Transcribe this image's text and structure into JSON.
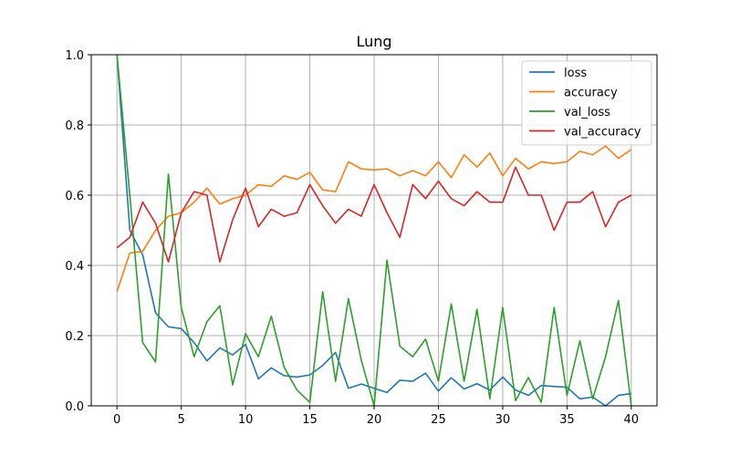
{
  "chart_data": {
    "type": "line",
    "title": "Lung",
    "xlabel": "",
    "ylabel": "",
    "xlim": [
      -2,
      42
    ],
    "ylim": [
      0,
      1.0
    ],
    "x_ticks": [
      0,
      5,
      10,
      15,
      20,
      25,
      30,
      35,
      40
    ],
    "y_ticks": [
      0.0,
      0.2,
      0.4,
      0.6,
      0.8,
      1.0
    ],
    "x_tick_labels": [
      "0",
      "5",
      "10",
      "15",
      "20",
      "25",
      "30",
      "35",
      "40"
    ],
    "y_tick_labels": [
      "0.0",
      "0.2",
      "0.4",
      "0.6",
      "0.8",
      "1.0"
    ],
    "grid": true,
    "legend_position": "top-right",
    "x": [
      0,
      1,
      2,
      3,
      4,
      5,
      6,
      7,
      8,
      9,
      10,
      11,
      12,
      13,
      14,
      15,
      16,
      17,
      18,
      19,
      20,
      21,
      22,
      23,
      24,
      25,
      26,
      27,
      28,
      29,
      30,
      31,
      32,
      33,
      34,
      35,
      36,
      37,
      38,
      39,
      40
    ],
    "series": [
      {
        "name": "loss",
        "color": "#1f77b4",
        "values": [
          1.0,
          0.5,
          0.43,
          0.265,
          0.225,
          0.22,
          0.18,
          0.128,
          0.165,
          0.145,
          0.175,
          0.077,
          0.108,
          0.086,
          0.082,
          0.088,
          0.115,
          0.152,
          0.05,
          0.062,
          0.05,
          0.038,
          0.073,
          0.07,
          0.093,
          0.042,
          0.08,
          0.048,
          0.063,
          0.045,
          0.082,
          0.045,
          0.03,
          0.058,
          0.055,
          0.053,
          0.02,
          0.025,
          0.0,
          0.03,
          0.035
        ]
      },
      {
        "name": "accuracy",
        "color": "#ff7f0e",
        "values": [
          0.325,
          0.435,
          0.44,
          0.5,
          0.54,
          0.55,
          0.58,
          0.62,
          0.575,
          0.59,
          0.6,
          0.63,
          0.625,
          0.655,
          0.645,
          0.665,
          0.615,
          0.61,
          0.695,
          0.675,
          0.672,
          0.675,
          0.655,
          0.67,
          0.655,
          0.695,
          0.65,
          0.715,
          0.68,
          0.72,
          0.655,
          0.705,
          0.675,
          0.695,
          0.69,
          0.695,
          0.725,
          0.715,
          0.74,
          0.705,
          0.73
        ]
      },
      {
        "name": "val_loss",
        "color": "#2ca02c",
        "values": [
          1.0,
          0.6,
          0.18,
          0.125,
          0.66,
          0.28,
          0.14,
          0.24,
          0.285,
          0.06,
          0.205,
          0.14,
          0.255,
          0.11,
          0.045,
          0.01,
          0.325,
          0.07,
          0.305,
          0.13,
          0.0,
          0.415,
          0.17,
          0.14,
          0.19,
          0.07,
          0.29,
          0.07,
          0.275,
          0.02,
          0.28,
          0.015,
          0.08,
          0.01,
          0.28,
          0.03,
          0.185,
          0.02,
          0.14,
          0.3,
          0.0
        ]
      },
      {
        "name": "val_accuracy",
        "color": "#d62728",
        "values": [
          0.45,
          0.48,
          0.58,
          0.52,
          0.41,
          0.55,
          0.61,
          0.6,
          0.41,
          0.53,
          0.62,
          0.51,
          0.56,
          0.54,
          0.55,
          0.63,
          0.57,
          0.52,
          0.56,
          0.54,
          0.63,
          0.55,
          0.48,
          0.63,
          0.59,
          0.64,
          0.59,
          0.57,
          0.61,
          0.58,
          0.58,
          0.68,
          0.6,
          0.6,
          0.5,
          0.58,
          0.58,
          0.61,
          0.51,
          0.58,
          0.6
        ]
      }
    ]
  }
}
